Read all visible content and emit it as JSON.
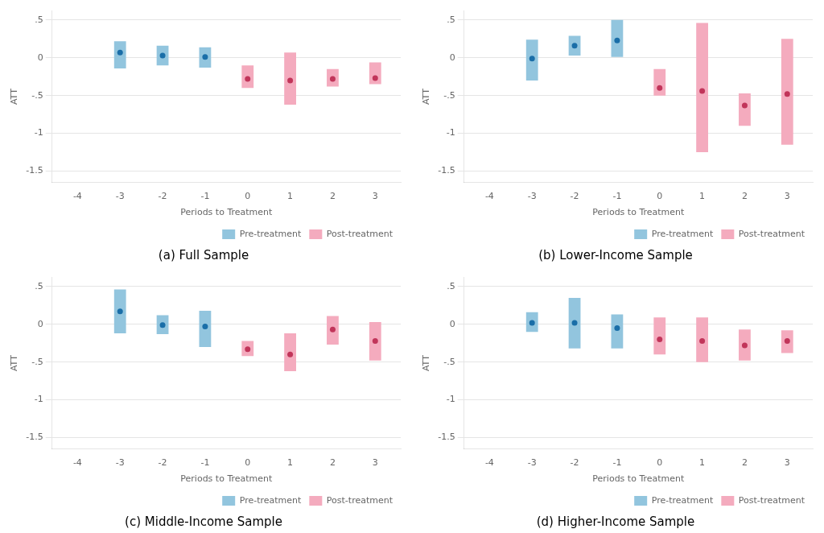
{
  "chart_data": [
    {
      "type": "bar",
      "title": "(a) Full Sample",
      "xlabel": "Periods to Treatment",
      "ylabel": "ATT",
      "xlim": [
        -4.6,
        3.6
      ],
      "xticks": [
        -4,
        -3,
        -2,
        -1,
        0,
        1,
        2,
        3
      ],
      "ylim": [
        -1.65,
        0.62
      ],
      "yticks": [
        {
          "value": 0.5,
          "label": ".5"
        },
        0,
        {
          "value": -0.5,
          "label": "-.5"
        },
        -1,
        -1.5
      ],
      "grid": "y",
      "legend": "lower right",
      "series": [
        {
          "name": "Pre-treatment",
          "type": "bar",
          "color": "#92C5DE",
          "x": [
            -3,
            -2,
            -1
          ],
          "ci_low": [
            -0.14,
            -0.1,
            -0.13
          ],
          "ci_high": [
            0.22,
            0.16,
            0.14
          ]
        },
        {
          "name": "Post-treatment",
          "type": "bar",
          "color": "#F4ABBE",
          "x": [
            0,
            1,
            2,
            3
          ],
          "ci_low": [
            -0.4,
            -0.62,
            -0.38,
            -0.35
          ],
          "ci_high": [
            -0.1,
            0.07,
            -0.15,
            -0.06
          ]
        },
        {
          "type": "scatter",
          "marker": "circle",
          "color": "#1A6EA8",
          "x": [
            -3,
            -2,
            -1
          ],
          "values": [
            0.07,
            0.03,
            0.01
          ]
        },
        {
          "type": "scatter",
          "marker": "circle",
          "color": "#C1355A",
          "x": [
            0,
            1,
            2,
            3
          ],
          "values": [
            -0.28,
            -0.3,
            -0.28,
            -0.27
          ]
        }
      ]
    },
    {
      "type": "bar",
      "title": "(b) Lower-Income Sample",
      "xlabel": "Periods to Treatment",
      "ylabel": "ATT",
      "xlim": [
        -4.6,
        3.6
      ],
      "xticks": [
        -4,
        -3,
        -2,
        -1,
        0,
        1,
        2,
        3
      ],
      "ylim": [
        -1.65,
        0.62
      ],
      "yticks": [
        {
          "value": 0.5,
          "label": ".5"
        },
        0,
        {
          "value": -0.5,
          "label": "-.5"
        },
        -1,
        -1.5
      ],
      "grid": "y",
      "legend": "lower right",
      "series": [
        {
          "name": "Pre-treatment",
          "type": "bar",
          "color": "#92C5DE",
          "x": [
            -3,
            -2,
            -1
          ],
          "ci_low": [
            -0.3,
            0.03,
            0.01
          ],
          "ci_high": [
            0.24,
            0.29,
            0.5
          ]
        },
        {
          "name": "Post-treatment",
          "type": "bar",
          "color": "#F4ABBE",
          "x": [
            0,
            1,
            2,
            3
          ],
          "ci_low": [
            -0.5,
            -1.25,
            -0.9,
            -1.15
          ],
          "ci_high": [
            -0.15,
            0.46,
            -0.47,
            0.25
          ]
        },
        {
          "type": "scatter",
          "marker": "circle",
          "color": "#1A6EA8",
          "x": [
            -3,
            -2,
            -1
          ],
          "values": [
            -0.01,
            0.16,
            0.23
          ]
        },
        {
          "type": "scatter",
          "marker": "circle",
          "color": "#C1355A",
          "x": [
            0,
            1,
            2,
            3
          ],
          "values": [
            -0.4,
            -0.44,
            -0.63,
            -0.48
          ]
        }
      ]
    },
    {
      "type": "bar",
      "title": "(c) Middle-Income Sample",
      "xlabel": "Periods to Treatment",
      "ylabel": "ATT",
      "xlim": [
        -4.6,
        3.6
      ],
      "xticks": [
        -4,
        -3,
        -2,
        -1,
        0,
        1,
        2,
        3
      ],
      "ylim": [
        -1.65,
        0.62
      ],
      "yticks": [
        {
          "value": 0.5,
          "label": ".5"
        },
        0,
        {
          "value": -0.5,
          "label": "-.5"
        },
        -1,
        -1.5
      ],
      "grid": "y",
      "legend": "lower right",
      "series": [
        {
          "name": "Pre-treatment",
          "type": "bar",
          "color": "#92C5DE",
          "x": [
            -3,
            -2,
            -1
          ],
          "ci_low": [
            -0.12,
            -0.13,
            -0.3
          ],
          "ci_high": [
            0.46,
            0.12,
            0.18
          ]
        },
        {
          "name": "Post-treatment",
          "type": "bar",
          "color": "#F4ABBE",
          "x": [
            0,
            1,
            2,
            3
          ],
          "ci_low": [
            -0.42,
            -0.62,
            -0.27,
            -0.48
          ],
          "ci_high": [
            -0.22,
            -0.12,
            0.11,
            0.03
          ]
        },
        {
          "type": "scatter",
          "marker": "circle",
          "color": "#1A6EA8",
          "x": [
            -3,
            -2,
            -1
          ],
          "values": [
            0.17,
            -0.01,
            -0.03
          ]
        },
        {
          "type": "scatter",
          "marker": "circle",
          "color": "#C1355A",
          "x": [
            0,
            1,
            2,
            3
          ],
          "values": [
            -0.33,
            -0.4,
            -0.07,
            -0.22
          ]
        }
      ]
    },
    {
      "type": "bar",
      "title": "(d) Higher-Income Sample",
      "xlabel": "Periods to Treatment",
      "ylabel": "ATT",
      "xlim": [
        -4.6,
        3.6
      ],
      "xticks": [
        -4,
        -3,
        -2,
        -1,
        0,
        1,
        2,
        3
      ],
      "ylim": [
        -1.65,
        0.62
      ],
      "yticks": [
        {
          "value": 0.5,
          "label": ".5"
        },
        0,
        {
          "value": -0.5,
          "label": "-.5"
        },
        -1,
        -1.5
      ],
      "grid": "y",
      "legend": "lower right",
      "series": [
        {
          "name": "Pre-treatment",
          "type": "bar",
          "color": "#92C5DE",
          "x": [
            -3,
            -2,
            -1
          ],
          "ci_low": [
            -0.1,
            -0.32,
            -0.32
          ],
          "ci_high": [
            0.16,
            0.35,
            0.13
          ]
        },
        {
          "name": "Post-treatment",
          "type": "bar",
          "color": "#F4ABBE",
          "x": [
            0,
            1,
            2,
            3
          ],
          "ci_low": [
            -0.4,
            -0.5,
            -0.48,
            -0.38
          ],
          "ci_high": [
            0.09,
            0.09,
            -0.07,
            -0.08
          ]
        },
        {
          "type": "scatter",
          "marker": "circle",
          "color": "#1A6EA8",
          "x": [
            -3,
            -2,
            -1
          ],
          "values": [
            0.02,
            0.02,
            -0.05
          ]
        },
        {
          "type": "scatter",
          "marker": "circle",
          "color": "#C1355A",
          "x": [
            0,
            1,
            2,
            3
          ],
          "values": [
            -0.2,
            -0.22,
            -0.28,
            -0.22
          ]
        }
      ]
    }
  ]
}
